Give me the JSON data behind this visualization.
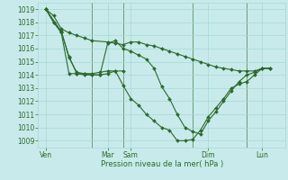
{
  "background_color": "#c8eaea",
  "grid_color": "#a8d8d8",
  "line_color": "#2d6a2d",
  "xlabel": "Pression niveau de la mer( hPa )",
  "ylim": [
    1008.5,
    1019.5
  ],
  "yticks": [
    1009,
    1010,
    1011,
    1012,
    1013,
    1014,
    1015,
    1016,
    1017,
    1018,
    1019
  ],
  "xlim": [
    0,
    16
  ],
  "xtick_positions": [
    0.5,
    4.5,
    6.0,
    11.0,
    14.5
  ],
  "xtick_labels": [
    "Ven",
    "Mar",
    "Sam",
    "Dim",
    "Lun"
  ],
  "vlines": [
    3.5,
    5.5,
    10.0,
    13.5
  ],
  "series1_x": [
    0.5,
    1.0,
    1.5,
    2.0,
    2.5,
    3.0,
    3.5,
    4.5,
    5.0,
    5.5,
    6.0,
    6.5,
    7.0,
    7.5,
    8.0,
    8.5,
    9.0,
    9.5,
    10.0,
    10.5,
    11.0,
    11.5,
    12.0,
    12.5,
    13.0,
    13.5,
    14.0,
    14.5,
    15.0
  ],
  "series1_y": [
    1019.0,
    1018.5,
    1017.5,
    1017.2,
    1017.0,
    1016.8,
    1016.6,
    1016.5,
    1016.4,
    1016.3,
    1016.5,
    1016.5,
    1016.3,
    1016.2,
    1016.0,
    1015.8,
    1015.6,
    1015.4,
    1015.2,
    1015.0,
    1014.8,
    1014.6,
    1014.5,
    1014.4,
    1014.3,
    1014.3,
    1014.3,
    1014.5,
    1014.5
  ],
  "series2_x": [
    0.5,
    1.5,
    2.0,
    2.5,
    3.0,
    3.5,
    4.0,
    4.5,
    5.0,
    5.5
  ],
  "series2_y": [
    1019.0,
    1017.3,
    1015.3,
    1014.2,
    1014.1,
    1014.1,
    1014.2,
    1014.3,
    1014.3,
    1014.3
  ],
  "series3_x": [
    0.5,
    1.0,
    1.5,
    2.0,
    2.5,
    3.0,
    3.5,
    4.0,
    4.5,
    5.0,
    5.5,
    6.0,
    6.5,
    7.0,
    7.5,
    8.0,
    8.5,
    9.0,
    9.5,
    10.0,
    10.5,
    11.0,
    11.5,
    12.0,
    12.5,
    13.0,
    13.5,
    14.0,
    14.5,
    15.0
  ],
  "series3_y": [
    1019.0,
    1018.0,
    1017.3,
    1015.4,
    1014.1,
    1014.1,
    1014.0,
    1014.0,
    1014.1,
    1014.3,
    1013.2,
    1012.2,
    1011.7,
    1011.0,
    1010.5,
    1010.0,
    1009.8,
    1009.0,
    1009.0,
    1009.1,
    1009.8,
    1010.8,
    1011.5,
    1012.2,
    1013.0,
    1013.3,
    1013.5,
    1014.0,
    1014.5,
    1014.5
  ],
  "series4_x": [
    0.5,
    1.0,
    1.5,
    2.0,
    2.5,
    3.0,
    3.5,
    4.0,
    4.5,
    5.0,
    5.5,
    6.0,
    6.5,
    7.0,
    7.5,
    8.0,
    8.5,
    9.0,
    9.5,
    10.0,
    10.5,
    11.0,
    11.5,
    12.0,
    12.5,
    13.0,
    13.5,
    14.0,
    14.5,
    15.0
  ],
  "series4_y": [
    1019.0,
    1018.0,
    1017.2,
    1014.1,
    1014.1,
    1014.0,
    1014.0,
    1014.0,
    1016.4,
    1016.6,
    1016.0,
    1015.8,
    1015.5,
    1015.2,
    1014.5,
    1013.1,
    1012.2,
    1011.0,
    1010.0,
    1009.7,
    1009.5,
    1010.5,
    1011.2,
    1012.0,
    1012.8,
    1013.5,
    1014.0,
    1014.2,
    1014.5,
    1014.5
  ]
}
